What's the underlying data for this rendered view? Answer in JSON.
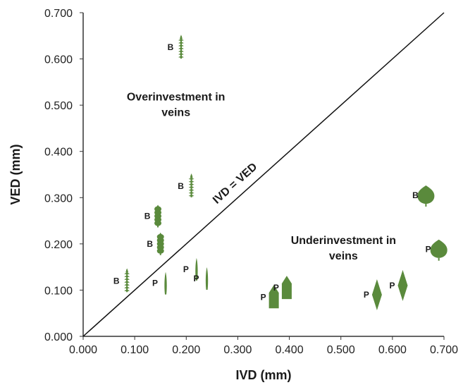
{
  "chart_data": {
    "type": "scatter",
    "xlabel": "IVD (mm)",
    "ylabel": "VED (mm)",
    "xlim": [
      0,
      0.7
    ],
    "ylim": [
      0,
      0.7
    ],
    "x_ticks": [
      "0.000",
      "0.100",
      "0.200",
      "0.300",
      "0.400",
      "0.500",
      "0.600",
      "0.700"
    ],
    "y_ticks": [
      "0.000",
      "0.100",
      "0.200",
      "0.300",
      "0.400",
      "0.500",
      "0.600",
      "0.700"
    ],
    "grid": false,
    "marker_color": "#5a8a3c",
    "reference_line": {
      "label": "IVD = VED",
      "from": [
        0,
        0
      ],
      "to": [
        0.7,
        0.7
      ]
    },
    "annotations": [
      {
        "lines": [
          "Overinvestment in",
          "veins"
        ],
        "x": 0.18,
        "y": 0.51
      },
      {
        "lines": [
          "Underinvestment in",
          "veins"
        ],
        "x": 0.505,
        "y": 0.2
      }
    ],
    "points": [
      {
        "x": 0.19,
        "y": 0.625,
        "label": "B",
        "shape": "serrate"
      },
      {
        "x": 0.21,
        "y": 0.325,
        "label": "B",
        "shape": "serrate"
      },
      {
        "x": 0.145,
        "y": 0.26,
        "label": "B",
        "shape": "lobed"
      },
      {
        "x": 0.15,
        "y": 0.2,
        "label": "B",
        "shape": "lobed"
      },
      {
        "x": 0.085,
        "y": 0.12,
        "label": "B",
        "shape": "serrate"
      },
      {
        "x": 0.16,
        "y": 0.115,
        "label": "P",
        "shape": "linear"
      },
      {
        "x": 0.22,
        "y": 0.145,
        "label": "P",
        "shape": "linear"
      },
      {
        "x": 0.24,
        "y": 0.125,
        "label": "P",
        "shape": "linear"
      },
      {
        "x": 0.37,
        "y": 0.085,
        "label": "P",
        "shape": "arrow"
      },
      {
        "x": 0.395,
        "y": 0.105,
        "label": "P",
        "shape": "arrow"
      },
      {
        "x": 0.57,
        "y": 0.09,
        "label": "P",
        "shape": "diamond"
      },
      {
        "x": 0.62,
        "y": 0.11,
        "label": "P",
        "shape": "diamond"
      },
      {
        "x": 0.665,
        "y": 0.305,
        "label": "B",
        "shape": "round"
      },
      {
        "x": 0.69,
        "y": 0.188,
        "label": "P",
        "shape": "round"
      }
    ]
  }
}
